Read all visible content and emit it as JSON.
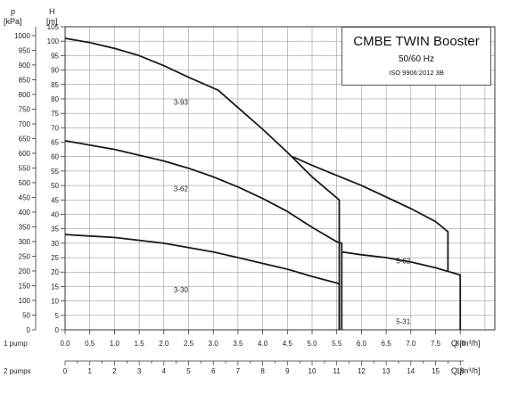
{
  "chart_data": {
    "type": "line",
    "title": "CMBE TWIN Booster",
    "subtitle": "50/60 Hz",
    "standard": "ISO 9906:2012 3B",
    "left_unit_top": "p",
    "left_unit_label": "[kPa]",
    "right_unit_top": "H",
    "right_unit_label": "[m]",
    "xlabel": "Q [m³/h]",
    "x_axis_1pump_label": "1 pump",
    "x_axis_2pumps_label": "2 pumps",
    "x_axis_2pumps_unit": "Q [m³/h]",
    "xlim": [
      0,
      8.7
    ],
    "ylim_m": [
      0,
      105
    ],
    "kpa_ticks": [
      "0",
      "50",
      "100",
      "150",
      "200",
      "250",
      "300",
      "350",
      "400",
      "450",
      "500",
      "550",
      "600",
      "650",
      "700",
      "750",
      "800",
      "850",
      "900",
      "950",
      "1000"
    ],
    "m_ticks": [
      "0",
      "5",
      "10",
      "15",
      "20",
      "25",
      "30",
      "35",
      "40",
      "45",
      "50",
      "55",
      "60",
      "65",
      "70",
      "75",
      "80",
      "85",
      "90",
      "95",
      "100",
      "105"
    ],
    "x_ticks_1pump": [
      "0.0",
      "0.5",
      "1.0",
      "1.5",
      "2.0",
      "2.5",
      "3.0",
      "3.5",
      "4.0",
      "4.5",
      "5.0",
      "5.5",
      "6.0",
      "6.5",
      "7.0",
      "7.5",
      "8.0"
    ],
    "x_ticks_2pumps": [
      "0",
      "1",
      "2",
      "3",
      "4",
      "5",
      "6",
      "7",
      "8",
      "9",
      "10",
      "11",
      "12",
      "13",
      "14",
      "15",
      "16"
    ],
    "series": [
      {
        "name": "3-93",
        "label_at": [
          2.2,
          78
        ],
        "points": [
          [
            0,
            101
          ],
          [
            0.5,
            99.5
          ],
          [
            1,
            97.5
          ],
          [
            1.5,
            95
          ],
          [
            2,
            91.5
          ],
          [
            2.5,
            87.5
          ],
          [
            3.1,
            83
          ],
          [
            3.5,
            77
          ],
          [
            4,
            69.5
          ],
          [
            4.5,
            61.5
          ],
          [
            5,
            53
          ],
          [
            5.55,
            45
          ],
          [
            5.55,
            0
          ]
        ]
      },
      {
        "name": "3-62",
        "label_at": [
          2.2,
          48
        ],
        "points": [
          [
            0,
            65.5
          ],
          [
            0.5,
            64
          ],
          [
            1,
            62.5
          ],
          [
            1.5,
            60.5
          ],
          [
            2,
            58.5
          ],
          [
            2.5,
            56
          ],
          [
            3,
            53
          ],
          [
            3.5,
            49.5
          ],
          [
            4,
            45.5
          ],
          [
            4.5,
            41
          ],
          [
            5,
            35.5
          ],
          [
            5.5,
            30.5
          ],
          [
            5.6,
            30
          ],
          [
            5.6,
            0
          ]
        ]
      },
      {
        "name": "3-30",
        "label_at": [
          2.2,
          13
        ],
        "points": [
          [
            0,
            33
          ],
          [
            0.5,
            32.5
          ],
          [
            1,
            32
          ],
          [
            1.5,
            31
          ],
          [
            2,
            30
          ],
          [
            2.5,
            28.5
          ],
          [
            3,
            27
          ],
          [
            3.5,
            25
          ],
          [
            4,
            23
          ],
          [
            4.5,
            21
          ],
          [
            5,
            18.5
          ],
          [
            5.55,
            16
          ],
          [
            5.55,
            0
          ]
        ]
      },
      {
        "name": "5-62",
        "label_at": [
          6.7,
          23
        ],
        "points": [
          [
            4.6,
            60
          ],
          [
            5,
            57
          ],
          [
            5.5,
            53.5
          ],
          [
            6,
            50
          ],
          [
            6.5,
            46
          ],
          [
            7,
            42
          ],
          [
            7.5,
            37.5
          ],
          [
            7.75,
            34
          ],
          [
            7.75,
            20.5
          ]
        ]
      },
      {
        "name": "5-31",
        "label_at": [
          6.7,
          2
        ],
        "points": [
          [
            5.6,
            27
          ],
          [
            6,
            26
          ],
          [
            6.5,
            25
          ],
          [
            7,
            23.5
          ],
          [
            7.5,
            21.5
          ],
          [
            8,
            19
          ],
          [
            8,
            0
          ]
        ]
      }
    ]
  }
}
